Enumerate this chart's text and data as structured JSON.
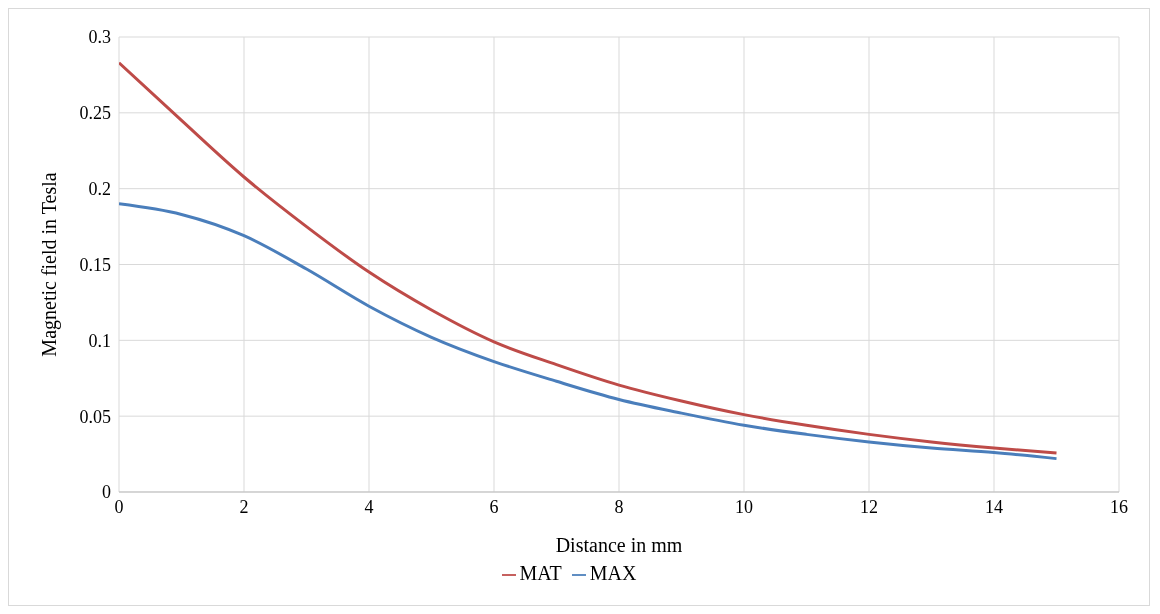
{
  "chart_data": {
    "type": "line",
    "xlabel": "Distance in mm",
    "ylabel": "Magnetic field in Tesla",
    "x": [
      0,
      1,
      2,
      3,
      4,
      5,
      6,
      7,
      8,
      9,
      10,
      11,
      12,
      13,
      14,
      15
    ],
    "series": [
      {
        "name": "MAX",
        "color": "#4a7ebb",
        "values": [
          0.19,
          0.183,
          0.169,
          0.147,
          0.1225,
          0.102,
          0.086,
          0.073,
          0.061,
          0.052,
          0.044,
          0.038,
          0.033,
          0.029,
          0.026,
          0.022
        ]
      },
      {
        "name": "MAT",
        "color": "#be4b48",
        "values": [
          0.283,
          0.245,
          0.2077,
          0.175,
          0.145,
          0.12,
          0.099,
          0.084,
          0.0705,
          0.06,
          0.051,
          0.044,
          0.038,
          0.033,
          0.029,
          0.0257
        ]
      }
    ],
    "xlim": [
      0,
      16
    ],
    "xticks": [
      0,
      2,
      4,
      6,
      8,
      10,
      12,
      14,
      16
    ],
    "ylim": [
      0,
      0.3
    ],
    "yticks": [
      0,
      0.05,
      0.1,
      0.15,
      0.2,
      0.25,
      0.3
    ],
    "grid": true,
    "legend": "bottom",
    "marker": "none",
    "line_style": "solid"
  }
}
